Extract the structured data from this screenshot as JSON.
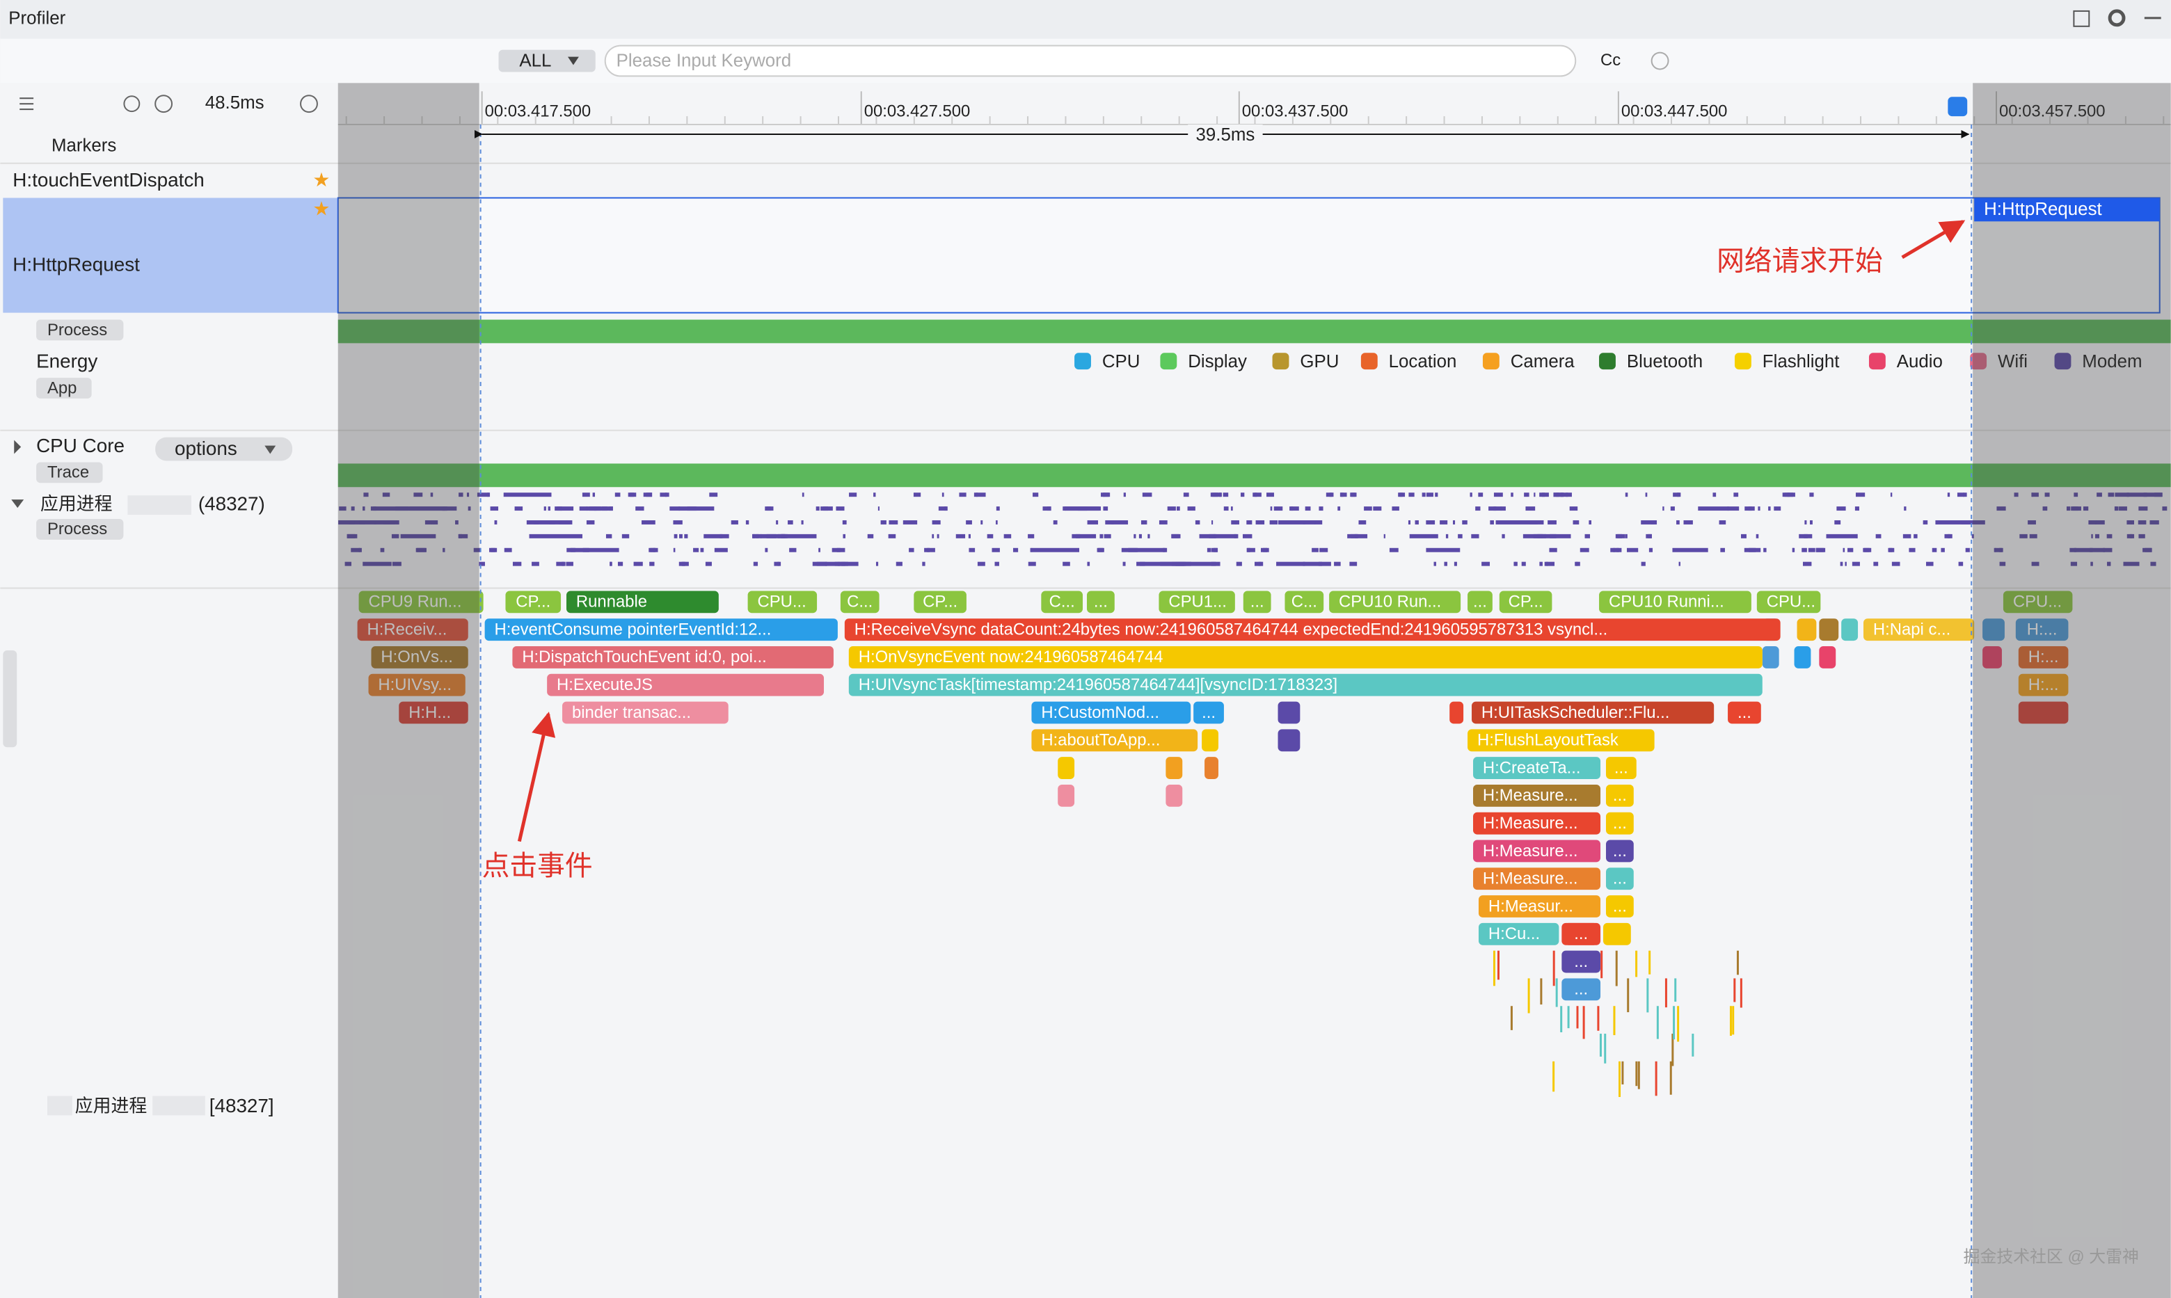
{
  "window": {
    "title": "Profiler"
  },
  "toolbar": {
    "filter": "ALL",
    "search_placeholder": "Please Input Keyword",
    "case_toggle": "Cc"
  },
  "timeline": {
    "zoom": "48.5ms",
    "ticks": [
      "00:03.417.500",
      "00:03.427.500",
      "00:03.437.500",
      "00:03.447.500",
      "00:03.457.500"
    ],
    "selection": "39.5ms"
  },
  "tracks": {
    "markers": "Markers",
    "touch": "H:touchEventDispatch",
    "http": "H:HttpRequest",
    "process_tag": "Process",
    "energy": "Energy",
    "app_tag": "App",
    "cpu_core": "CPU Core",
    "options": "options",
    "trace_tag": "Trace",
    "app_process": "应用进程",
    "pid": "(48327)",
    "process_tag2": "Process",
    "thread_name": "应用进程",
    "thread_pid": "[48327]"
  },
  "http_slice": "H:HttpRequest",
  "energy_legend": [
    {
      "name": "CPU",
      "color": "#2aa7e0"
    },
    {
      "name": "Display",
      "color": "#5cc95c"
    },
    {
      "name": "GPU",
      "color": "#b8962e"
    },
    {
      "name": "Location",
      "color": "#e8642a"
    },
    {
      "name": "Camera",
      "color": "#f5a020"
    },
    {
      "name": "Bluetooth",
      "color": "#2e7d2e"
    },
    {
      "name": "Flashlight",
      "color": "#f5d000"
    },
    {
      "name": "Audio",
      "color": "#e8436a"
    },
    {
      "name": "Wifi",
      "color": "#e06a8a"
    },
    {
      "name": "Modem",
      "color": "#5b4aa8"
    }
  ],
  "slices": [
    {
      "label": "CPU9 Run...",
      "color": "#8bc53f"
    },
    {
      "label": "CP...",
      "color": "#8bc53f"
    },
    {
      "label": "Runnable",
      "color": "#2e8b2e"
    },
    {
      "label": "CPU...",
      "color": "#8bc53f"
    },
    {
      "label": "C...",
      "color": "#8bc53f"
    },
    {
      "label": "CP...",
      "color": "#8bc53f"
    },
    {
      "label": "C...",
      "color": "#8bc53f"
    },
    {
      "label": "...",
      "color": "#8bc53f"
    },
    {
      "label": "CPU1...",
      "color": "#8bc53f"
    },
    {
      "label": "...",
      "color": "#8bc53f"
    },
    {
      "label": "C...",
      "color": "#8bc53f"
    },
    {
      "label": "CPU10 Run...",
      "color": "#8bc53f"
    },
    {
      "label": "...",
      "color": "#8bc53f"
    },
    {
      "label": "CP...",
      "color": "#8bc53f"
    },
    {
      "label": "CPU10 Runni...",
      "color": "#8bc53f"
    },
    {
      "label": "CPU...",
      "color": "#8bc53f"
    },
    {
      "label": "CPU...",
      "color": "#8bc53f"
    },
    {
      "label": "H:Receiv...",
      "color": "#e0533d"
    },
    {
      "label": "H:eventConsume pointerEventId:12...",
      "color": "#2a9ee8"
    },
    {
      "label": "H:ReceiveVsync dataCount:24bytes now:241960587464744 expectedEnd:241960595787313 vsyncl...",
      "color": "#e8452f"
    },
    {
      "label": "H:Napi c...",
      "color": "#f2c230"
    },
    {
      "label": "H:...",
      "color": "#4d9ad8"
    },
    {
      "label": "H:OnVs...",
      "color": "#a87b2e"
    },
    {
      "label": "H:DispatchTouchEvent id:0, poi...",
      "color": "#e26a74"
    },
    {
      "label": "H:OnVsyncEvent now:241960587464744",
      "color": "#f5c800"
    },
    {
      "label": "H:...",
      "color": "#e06b2e"
    },
    {
      "label": "H:UIVsy...",
      "color": "#e8812e"
    },
    {
      "label": "H:ExecuteJS",
      "color": "#e87a8c"
    },
    {
      "label": "H:UIVsyncTask[timestamp:241960587464744][vsyncID:1718323]",
      "color": "#5bc7c3"
    },
    {
      "label": "H:...",
      "color": "#f2a020"
    },
    {
      "label": "H:H...",
      "color": "#d9443a"
    },
    {
      "label": "binder transac...",
      "color": "#ee8ea0"
    },
    {
      "label": "H:CustomNod...",
      "color": "#2a9ee8"
    },
    {
      "label": "...",
      "color": "#2a9ee8"
    },
    {
      "label": "H:UITaskScheduler::Flu...",
      "color": "#c8442a"
    },
    {
      "label": "...",
      "color": "#e8452f"
    },
    {
      "label": "H:aboutToApp...",
      "color": "#f2b418"
    },
    {
      "label": "H:FlushLayoutTask",
      "color": "#f5c800"
    },
    {
      "label": "H:CreateTa...",
      "color": "#5bc7c3"
    },
    {
      "label": "...",
      "color": "#f5c800"
    },
    {
      "label": "H:Measure...",
      "color": "#a87b2e"
    },
    {
      "label": "...",
      "color": "#f5c800"
    },
    {
      "label": "H:Measure...",
      "color": "#e8452f"
    },
    {
      "label": "...",
      "color": "#f5c800"
    },
    {
      "label": "H:Measure...",
      "color": "#e0497a"
    },
    {
      "label": "...",
      "color": "#5b4aa8"
    },
    {
      "label": "H:Measure...",
      "color": "#e8812e"
    },
    {
      "label": "...",
      "color": "#5bc7c3"
    },
    {
      "label": "H:Measur...",
      "color": "#f2a020"
    },
    {
      "label": "...",
      "color": "#f5c800"
    },
    {
      "label": "H:Cu...",
      "color": "#5bc7c3"
    },
    {
      "label": "...",
      "color": "#e8452f"
    },
    {
      "label": "...",
      "color": "#5b4aa8"
    },
    {
      "label": "...",
      "color": "#4d9ad8"
    }
  ],
  "annotations": {
    "network": "网络请求开始",
    "click": "点击事件"
  },
  "watermark": "掘金技术社区 @ 大雷神"
}
